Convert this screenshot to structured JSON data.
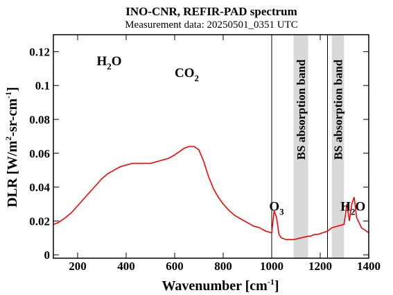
{
  "chart_data": {
    "type": "line",
    "title": "INO-CNR, REFIR-PAD spectrum",
    "subtitle": "Measurement data: 20250501_0351 UTC",
    "xlabel": {
      "main": "Wavenumber [cm",
      "sup": "-1",
      "close": "]"
    },
    "ylabel": {
      "p1": "DLR [W/m",
      "sup1": "2",
      "p2": "-sr-cm",
      "sup2": "-1",
      "p3": "]"
    },
    "xlim": [
      100,
      1400
    ],
    "ylim": [
      -0.002,
      0.13
    ],
    "x_ticks": [
      200,
      400,
      600,
      800,
      1000,
      1200,
      1400
    ],
    "y_ticks": [
      0,
      0.02,
      0.04,
      0.06,
      0.08,
      0.1,
      0.12
    ],
    "y_tick_labels": [
      "0",
      "0.02",
      "0.04",
      "0.06",
      "0.08",
      "0.1",
      "0.12"
    ],
    "line_color": "#ff0000",
    "band_color": "#d9d9d9",
    "bands": [
      {
        "x0": 1090,
        "x1": 1150,
        "label": "BS absorption band"
      },
      {
        "x0": 1248,
        "x1": 1298,
        "label": "BS absorption band"
      }
    ],
    "vertical_lines": [
      1000,
      1230
    ],
    "annotations": [
      {
        "id": "h2o-left",
        "base": "H",
        "sub": "2",
        "tail": "O",
        "x": 330,
        "y": 0.112
      },
      {
        "id": "co2",
        "base": "CO",
        "sub": "2",
        "tail": "",
        "x": 650,
        "y": 0.105
      },
      {
        "id": "o3",
        "base": "O",
        "sub": "3",
        "tail": "",
        "x": 1020,
        "y": 0.026
      },
      {
        "id": "h2o-right",
        "base": "H",
        "sub": "2",
        "tail": "O",
        "x": 1335,
        "y": 0.026
      }
    ],
    "series": [
      {
        "x": [
          100,
          120,
          130,
          150,
          175,
          200,
          225,
          250,
          275,
          300,
          325,
          350,
          375,
          400,
          425,
          450,
          475,
          500,
          525,
          550,
          575,
          600,
          620,
          640,
          660,
          680,
          700,
          720,
          740,
          760,
          780,
          800,
          825,
          850,
          875,
          900,
          925,
          950,
          975,
          1000,
          1010,
          1020,
          1030,
          1040,
          1060,
          1080,
          1090,
          1150,
          1160,
          1175,
          1190,
          1210,
          1230,
          1248,
          1298,
          1310,
          1320,
          1330,
          1340,
          1350,
          1370,
          1400
        ],
        "y": [
          0.018,
          0.019,
          0.02,
          0.022,
          0.025,
          0.029,
          0.033,
          0.037,
          0.041,
          0.045,
          0.048,
          0.05,
          0.052,
          0.053,
          0.054,
          0.054,
          0.054,
          0.054,
          0.055,
          0.056,
          0.057,
          0.059,
          0.061,
          0.063,
          0.064,
          0.064,
          0.062,
          0.055,
          0.046,
          0.039,
          0.034,
          0.03,
          0.026,
          0.023,
          0.021,
          0.019,
          0.017,
          0.016,
          0.014,
          0.013,
          0.026,
          0.022,
          0.012,
          0.01,
          0.009,
          0.009,
          0.009,
          0.011,
          0.011,
          0.012,
          0.012,
          0.013,
          0.014,
          0.016,
          0.018,
          0.03,
          0.02,
          0.03,
          0.034,
          0.022,
          0.016,
          0.013
        ]
      }
    ]
  }
}
